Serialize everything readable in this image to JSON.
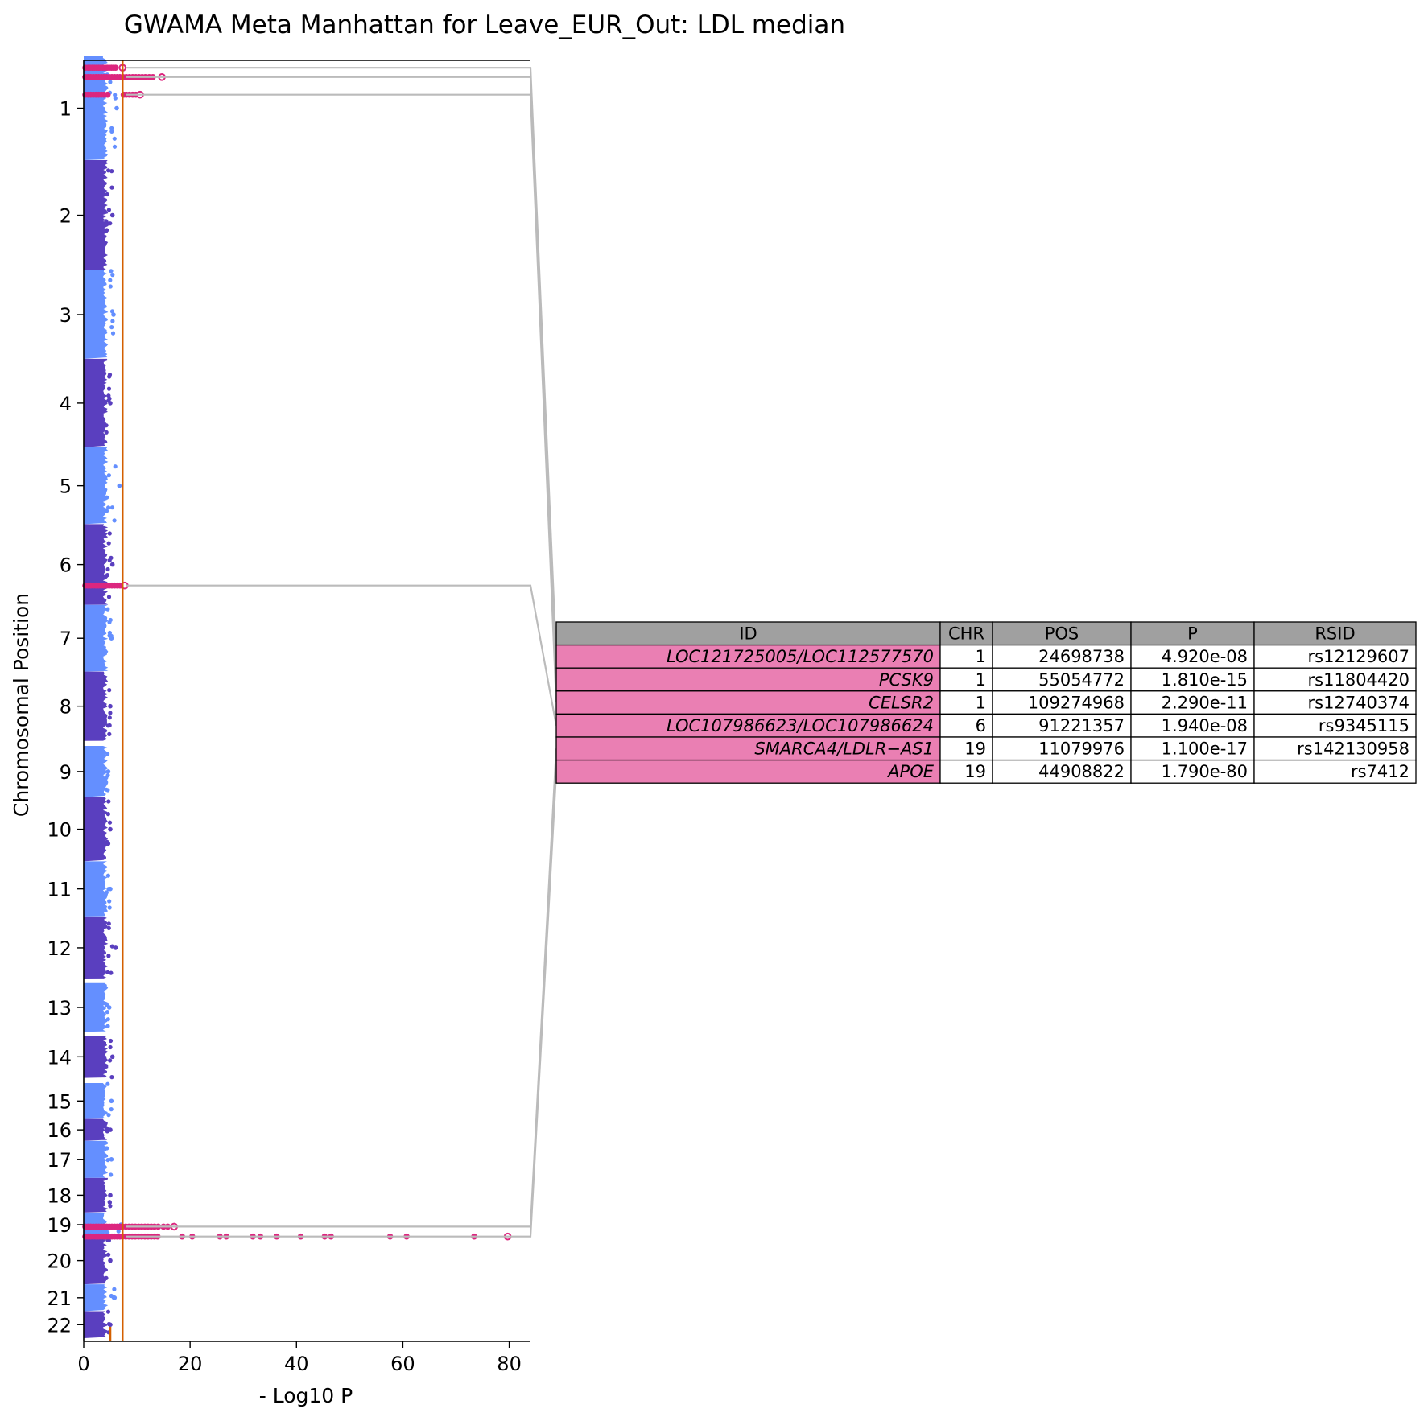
{
  "chart_data": {
    "type": "scatter",
    "subtype": "manhattan",
    "orientation": "horizontal",
    "title": "GWAMA Meta Manhattan for Leave_EUR_Out: LDL median",
    "xlabel": "- Log10 P",
    "ylabel": "Chromosomal Position",
    "xlim": [
      0,
      84
    ],
    "x_ticks": [
      0,
      20,
      40,
      60,
      80
    ],
    "grid": false,
    "significance_threshold": 7.3,
    "suggestive_threshold": 5,
    "colors": {
      "chrom_odd": "#648fff",
      "chrom_even": "#5a3fbf",
      "hit": "#dc267f",
      "threshold_line": "#d45f00",
      "connector": "#bbbbbb",
      "table_header": "#a0a0a0",
      "table_id_cell": "#ea7fb3"
    },
    "chromosomes": [
      {
        "label": "1",
        "start": 0.0,
        "end": 0.081,
        "max_bg": 6.2
      },
      {
        "label": "2",
        "start": 0.081,
        "end": 0.167,
        "max_bg": 5.4
      },
      {
        "label": "3",
        "start": 0.167,
        "end": 0.236,
        "max_bg": 5.6
      },
      {
        "label": "4",
        "start": 0.236,
        "end": 0.305,
        "max_bg": 5.0
      },
      {
        "label": "5",
        "start": 0.305,
        "end": 0.365,
        "max_bg": 6.7
      },
      {
        "label": "6",
        "start": 0.365,
        "end": 0.428,
        "max_bg": 5.4
      },
      {
        "label": "7",
        "start": 0.428,
        "end": 0.48,
        "max_bg": 5.2
      },
      {
        "label": "8",
        "start": 0.48,
        "end": 0.534,
        "max_bg": 5.0
      },
      {
        "label": "9",
        "start": 0.538,
        "end": 0.578,
        "max_bg": 4.6
      },
      {
        "label": "10",
        "start": 0.578,
        "end": 0.628,
        "max_bg": 5.0
      },
      {
        "label": "11",
        "start": 0.628,
        "end": 0.671,
        "max_bg": 5.0
      },
      {
        "label": "12",
        "start": 0.671,
        "end": 0.72,
        "max_bg": 6.0
      },
      {
        "label": "13",
        "start": 0.723,
        "end": 0.761,
        "max_bg": 4.8
      },
      {
        "label": "14",
        "start": 0.764,
        "end": 0.797,
        "max_bg": 5.4
      },
      {
        "label": "15",
        "start": 0.801,
        "end": 0.829,
        "max_bg": 5.2
      },
      {
        "label": "16",
        "start": 0.829,
        "end": 0.846,
        "max_bg": 5.0
      },
      {
        "label": "17",
        "start": 0.846,
        "end": 0.875,
        "max_bg": 5.2
      },
      {
        "label": "18",
        "start": 0.875,
        "end": 0.902,
        "max_bg": 5.0
      },
      {
        "label": "19",
        "start": 0.902,
        "end": 0.921,
        "max_bg": 7.0
      },
      {
        "label": "20",
        "start": 0.921,
        "end": 0.958,
        "max_bg": 5.0
      },
      {
        "label": "21",
        "start": 0.958,
        "end": 0.979,
        "max_bg": 5.8
      },
      {
        "label": "22",
        "start": 0.979,
        "end": 1.0,
        "max_bg": 5.0
      }
    ],
    "hits": [
      {
        "chr": "1",
        "rel": 0.11,
        "max_logp": 7.3,
        "points": [
          0.3,
          0.8,
          1.2,
          1.6,
          2.0,
          2.4,
          2.8,
          3.2,
          3.6,
          4.0,
          4.4,
          4.8,
          5.2,
          5.6,
          6.0,
          7.3
        ]
      },
      {
        "chr": "1",
        "rel": 0.2,
        "max_logp": 14.7,
        "points": [
          0.3,
          0.8,
          1.3,
          1.8,
          2.3,
          2.8,
          3.3,
          3.8,
          4.3,
          4.8,
          5.3,
          5.8,
          6.3,
          6.8,
          7.4,
          8.0,
          8.6,
          9.2,
          9.8,
          10.4,
          11.0,
          11.6,
          12.3,
          13.0,
          14.7
        ]
      },
      {
        "chr": "1",
        "rel": 0.37,
        "max_logp": 10.6,
        "points": [
          0.3,
          0.8,
          1.3,
          1.8,
          2.3,
          2.8,
          3.3,
          3.8,
          4.5,
          7.5,
          8.0,
          8.6,
          9.2,
          9.8,
          10.6
        ]
      },
      {
        "chr": "6",
        "rel": 0.76,
        "max_logp": 7.7,
        "points": [
          0.3,
          0.8,
          1.3,
          1.8,
          2.3,
          2.8,
          3.3,
          3.8,
          4.3,
          4.8,
          5.3,
          5.8,
          6.3,
          6.8,
          7.2,
          7.7
        ]
      },
      {
        "chr": "19",
        "rel": 0.58,
        "max_logp": 17.0,
        "points": [
          0.3,
          0.8,
          1.3,
          1.8,
          2.3,
          2.8,
          3.3,
          3.8,
          4.3,
          4.8,
          5.3,
          5.8,
          6.3,
          6.8,
          7.3,
          7.9,
          8.5,
          9.1,
          9.7,
          10.3,
          10.9,
          11.5,
          12.1,
          12.7,
          13.3,
          14.0,
          15.0,
          15.8,
          17.0
        ]
      },
      {
        "chr": "19",
        "rel": 0.985,
        "max_logp": 79.7,
        "points": [
          0.3,
          0.8,
          1.3,
          1.8,
          2.3,
          2.8,
          3.3,
          3.8,
          4.3,
          4.8,
          5.3,
          5.8,
          6.3,
          6.8,
          7.3,
          7.9,
          8.5,
          9.1,
          9.7,
          10.3,
          10.9,
          11.5,
          12.1,
          12.7,
          13.3,
          13.9,
          18.5,
          20.4,
          25.6,
          26.8,
          31.8,
          33.2,
          36.3,
          40.8,
          45.3,
          46.5,
          57.6,
          60.7,
          73.4,
          79.7
        ]
      }
    ],
    "table": {
      "columns": [
        "ID",
        "CHR",
        "POS",
        "P",
        "RSID"
      ],
      "rows": [
        [
          "LOC121725005/LOC112577570",
          "1",
          "24698738",
          "4.920e-08",
          "rs12129607"
        ],
        [
          "PCSK9",
          "1",
          "55054772",
          "1.810e-15",
          "rs11804420"
        ],
        [
          "CELSR2",
          "1",
          "109274968",
          "2.290e-11",
          "rs12740374"
        ],
        [
          "LOC107986623/LOC107986624",
          "6",
          "91221357",
          "1.940e-08",
          "rs9345115"
        ],
        [
          "SMARCA4/LDLR−AS1",
          "19",
          "11079976",
          "1.100e-17",
          "rs142130958"
        ],
        [
          "APOE",
          "19",
          "44908822",
          "1.790e-80",
          "rs7412"
        ]
      ]
    }
  }
}
